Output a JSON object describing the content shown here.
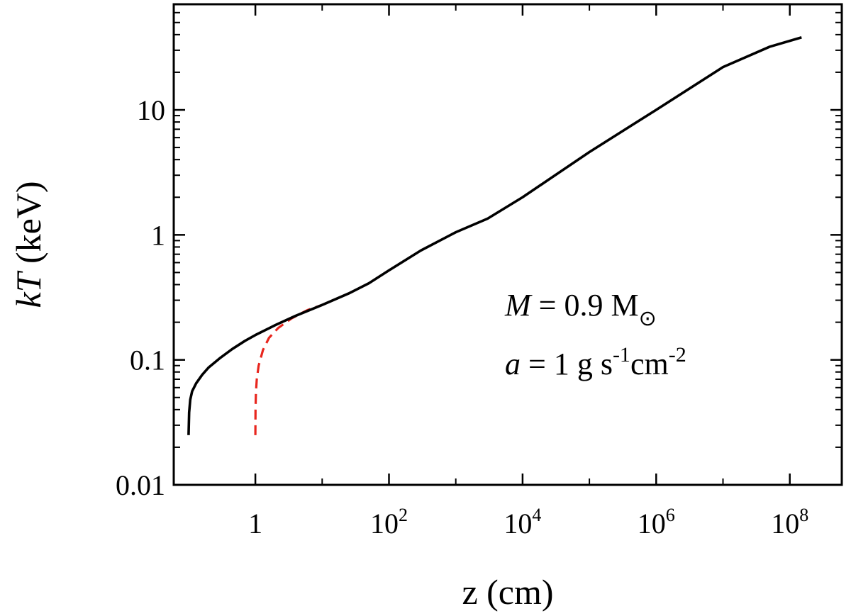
{
  "chart_data": {
    "type": "line",
    "xlabel": "z (cm)",
    "ylabel": "kT (keV)",
    "x_scale": "log",
    "y_scale": "log",
    "xlim": [
      0.06,
      600000000
    ],
    "ylim": [
      0.01,
      70
    ],
    "grid": false,
    "x_ticks": [
      {
        "value": 1,
        "base": "1",
        "exp": ""
      },
      {
        "value": 100,
        "base": "10",
        "exp": "2"
      },
      {
        "value": 10000,
        "base": "10",
        "exp": "4"
      },
      {
        "value": 1000000,
        "base": "10",
        "exp": "6"
      },
      {
        "value": 100000000,
        "base": "10",
        "exp": "8"
      }
    ],
    "x_minor_ticks": [
      10,
      1000,
      100000,
      10000000
    ],
    "y_ticks": [
      {
        "value": 0.01,
        "label": "0.01"
      },
      {
        "value": 0.1,
        "label": "0.1"
      },
      {
        "value": 1,
        "label": "1"
      },
      {
        "value": 10,
        "label": "10"
      }
    ],
    "series": [
      {
        "style": "solid",
        "color": "#000000",
        "points": [
          [
            0.1,
            0.025
          ],
          [
            0.102,
            0.038
          ],
          [
            0.106,
            0.048
          ],
          [
            0.113,
            0.056
          ],
          [
            0.13,
            0.065
          ],
          [
            0.16,
            0.076
          ],
          [
            0.2,
            0.087
          ],
          [
            0.3,
            0.104
          ],
          [
            0.45,
            0.122
          ],
          [
            0.7,
            0.142
          ],
          [
            1,
            0.158
          ],
          [
            2,
            0.19
          ],
          [
            4,
            0.225
          ],
          [
            10,
            0.275
          ],
          [
            25,
            0.34
          ],
          [
            50,
            0.41
          ],
          [
            100,
            0.52
          ],
          [
            300,
            0.75
          ],
          [
            1000,
            1.05
          ],
          [
            3000,
            1.35
          ],
          [
            10000,
            2.0
          ],
          [
            100000,
            4.6
          ],
          [
            1000000,
            10.0
          ],
          [
            10000000,
            22.0
          ],
          [
            50000000,
            32.0
          ],
          [
            150000000,
            38.0
          ]
        ]
      },
      {
        "style": "dashed",
        "color": "#e8261e",
        "points": [
          [
            1,
            0.025
          ],
          [
            1.005,
            0.04
          ],
          [
            1.02,
            0.055
          ],
          [
            1.05,
            0.07
          ],
          [
            1.12,
            0.09
          ],
          [
            1.3,
            0.12
          ],
          [
            1.6,
            0.15
          ],
          [
            2.2,
            0.18
          ],
          [
            3.5,
            0.215
          ],
          [
            6,
            0.25
          ],
          [
            10,
            0.275
          ],
          [
            25,
            0.34
          ],
          [
            50,
            0.41
          ],
          [
            100,
            0.52
          ]
        ]
      }
    ],
    "annotations": {
      "line1_var": "M",
      "line1_eq": " = 0.9 M",
      "line1_sub": "⊙",
      "line2_var": "a",
      "line2_eq": " = 1 g s",
      "line2_sup1": "-1",
      "line2_mid": "cm",
      "line2_sup2": "-2"
    }
  }
}
